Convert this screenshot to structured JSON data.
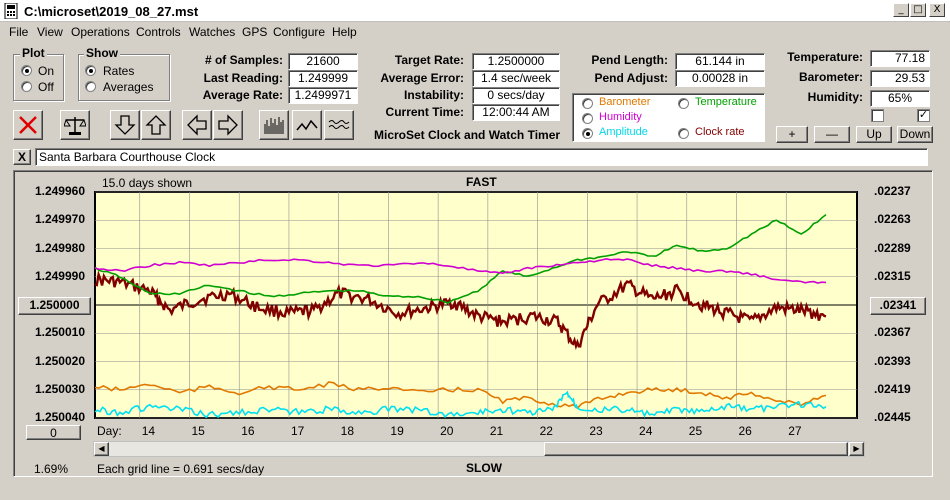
{
  "window": {
    "title": "C:\\microset\\2019_08_27.mst",
    "minimize": "_",
    "maximize": "□",
    "close": "X"
  },
  "menu": [
    "File",
    "View",
    "Operations",
    "Controls",
    "Watches",
    "GPS",
    "Configure",
    "Help"
  ],
  "plot_group": {
    "title": "Plot",
    "on": "On",
    "off": "Off",
    "selected": "On"
  },
  "show_group": {
    "title": "Show",
    "rates": "Rates",
    "averages": "Averages",
    "selected": "Rates"
  },
  "stats": {
    "samples_label": "# of Samples:",
    "samples": "21600",
    "last_label": "Last Reading:",
    "last": "1.249999",
    "avg_rate_label": "Average Rate:",
    "avg_rate": "1.2499971",
    "target_label": "Target Rate:",
    "target": "1.2500000",
    "avg_err_label": "Average Error:",
    "avg_err": "1.4 sec/week",
    "instab_label": "Instability:",
    "instab": "0 secs/day",
    "time_label": "Current Time:",
    "time": "12:00:44 AM",
    "pend_len_label": "Pend Length:",
    "pend_len": "61.144 in",
    "pend_adj_label": "Pend Adjust:",
    "pend_adj": "0.00028 in",
    "temp_label": "Temperature:",
    "temp": "77.18",
    "baro_label": "Barometer:",
    "baro": "29.53",
    "hum_label": "Humidity:",
    "hum": "65%"
  },
  "overlay": {
    "barometer": "Barometer",
    "temperature": "Temperature",
    "humidity": "Humidity",
    "amplitude": "Amplitude",
    "clockrate": "Clock rate",
    "selected": "Amplitude",
    "colors": {
      "barometer": "#e07800",
      "temperature": "#00a000",
      "humidity": "#d000d0",
      "amplitude": "#00d8e8",
      "clockrate": "#800000"
    }
  },
  "app_name": "MicroSet Clock and Watch Timer",
  "adjust_buttons": {
    "plus": "+",
    "minus": "—",
    "up": "Up",
    "down": "Down"
  },
  "clock_name": "Santa Barbara Courthouse Clock",
  "clear_btn": "X",
  "chart": {
    "days_shown": "15.0 days shown",
    "fast": "FAST",
    "slow": "SLOW",
    "center_left": "1.250000",
    "center_right": ".02341",
    "zero_btn": "0",
    "day_label": "Day:",
    "percent": "1.69%",
    "grid_note": "Each grid line = 0.691 secs/day"
  },
  "chart_data": {
    "type": "line",
    "title": "",
    "xlabel": "Day:",
    "x_ticks": [
      "14",
      "15",
      "16",
      "17",
      "18",
      "19",
      "20",
      "21",
      "22",
      "23",
      "24",
      "25",
      "26",
      "27"
    ],
    "y_left_ticks": [
      "1.249960",
      "1.249970",
      "1.249980",
      "1.249990",
      "1.250000",
      "1.250010",
      "1.250020",
      "1.250030",
      "1.250040"
    ],
    "y_right_ticks": [
      ".02237",
      ".02263",
      ".02289",
      ".02315",
      ".02341",
      ".02367",
      ".02393",
      ".02419",
      ".02445"
    ],
    "xlim": [
      13.1,
      27.9
    ],
    "ylim": [
      1.24996,
      1.25004
    ],
    "series": [
      {
        "key": "clock_rate",
        "color": "#800000",
        "x": [
          13.1,
          13.6,
          14.2,
          14.6,
          15.2,
          15.8,
          16.4,
          17.0,
          17.5,
          18.0,
          18.6,
          19.2,
          19.8,
          20.3,
          20.8,
          21.3,
          21.9,
          22.4,
          22.8,
          23.2,
          23.8,
          24.3,
          24.8,
          25.3,
          25.8,
          26.3,
          26.8,
          27.3,
          27.8
        ],
        "values": [
          1.249991,
          1.249992,
          1.249995,
          1.250002,
          1.249998,
          1.249996,
          1.250001,
          1.250003,
          1.250002,
          1.249996,
          1.249998,
          1.250003,
          1.250001,
          1.249999,
          1.250004,
          1.250006,
          1.250004,
          1.250006,
          1.250015,
          1.25,
          1.249993,
          1.249998,
          1.249995,
          1.25,
          1.250003,
          1.250006,
          1.250001,
          1.250002,
          1.250004
        ]
      },
      {
        "key": "temperature",
        "color": "#00a000",
        "x": [
          13.1,
          13.6,
          14.2,
          14.8,
          15.4,
          16.0,
          16.6,
          17.2,
          17.8,
          18.4,
          19.0,
          19.6,
          20.2,
          20.8,
          21.3,
          21.8,
          22.3,
          22.8,
          23.3,
          23.8,
          24.3,
          24.8,
          25.3,
          25.8,
          26.3,
          26.8,
          27.3,
          27.8
        ],
        "values": [
          1.249987,
          1.24999,
          1.249996,
          1.249996,
          1.249993,
          1.249995,
          1.249997,
          1.249996,
          1.249995,
          1.249995,
          1.249997,
          1.249997,
          1.249999,
          1.249995,
          1.249988,
          1.24999,
          1.249987,
          1.249984,
          1.249983,
          1.249981,
          1.249983,
          1.249979,
          1.249981,
          1.24998,
          1.249975,
          1.24997,
          1.249975,
          1.249968
        ]
      },
      {
        "key": "humidity",
        "color": "#d000d0",
        "x": [
          13.1,
          13.6,
          14.2,
          14.8,
          15.4,
          16.0,
          16.6,
          17.2,
          17.8,
          18.4,
          19.0,
          19.6,
          20.2,
          20.8,
          21.3,
          21.8,
          22.3,
          22.8,
          23.3,
          23.8,
          24.3,
          24.8,
          25.3,
          25.8,
          26.3,
          26.8,
          27.3,
          27.8
        ],
        "values": [
          1.249987,
          1.249988,
          1.249986,
          1.249985,
          1.249986,
          1.249985,
          1.249984,
          1.249984,
          1.249985,
          1.249986,
          1.249986,
          1.249985,
          1.249986,
          1.249988,
          1.249989,
          1.249987,
          1.249986,
          1.249985,
          1.249984,
          1.249984,
          1.249986,
          1.249987,
          1.249988,
          1.249988,
          1.249989,
          1.249991,
          1.249992,
          1.249992
        ]
      },
      {
        "key": "barometer",
        "color": "#e07800",
        "x": [
          13.1,
          13.6,
          14.2,
          14.8,
          15.4,
          16.0,
          16.6,
          17.2,
          17.8,
          18.4,
          19.0,
          19.6,
          20.2,
          20.8,
          21.3,
          21.8,
          22.3,
          22.8,
          23.3,
          23.8,
          24.3,
          24.8,
          25.3,
          25.8,
          26.3,
          26.8,
          27.3,
          27.8
        ],
        "values": [
          1.250029,
          1.25003,
          1.250028,
          1.250031,
          1.250029,
          1.250031,
          1.250029,
          1.25003,
          1.250028,
          1.25003,
          1.250029,
          1.250031,
          1.25003,
          1.25003,
          1.250034,
          1.250033,
          1.250035,
          1.250036,
          1.250033,
          1.250031,
          1.25003,
          1.25003,
          1.250031,
          1.250033,
          1.250031,
          1.250034,
          1.250035,
          1.250032
        ]
      },
      {
        "key": "amplitude",
        "color": "#00e0f0",
        "x": [
          13.1,
          13.6,
          14.2,
          14.8,
          15.4,
          16.0,
          16.6,
          17.2,
          17.8,
          18.4,
          19.0,
          19.6,
          20.2,
          20.8,
          21.3,
          21.8,
          22.3,
          22.6,
          22.8,
          23.3,
          23.8,
          24.3,
          24.8,
          25.3,
          25.8,
          26.3,
          26.8,
          27.3,
          27.8
        ],
        "values": [
          1.250037,
          1.250038,
          1.250036,
          1.250037,
          1.250039,
          1.250038,
          1.250037,
          1.250038,
          1.250037,
          1.250038,
          1.250037,
          1.250037,
          1.250039,
          1.250038,
          1.250037,
          1.250038,
          1.250037,
          1.250031,
          1.250036,
          1.250037,
          1.250037,
          1.250039,
          1.250037,
          1.250038,
          1.250036,
          1.250037,
          1.250036,
          1.250035,
          1.250036
        ]
      }
    ]
  }
}
